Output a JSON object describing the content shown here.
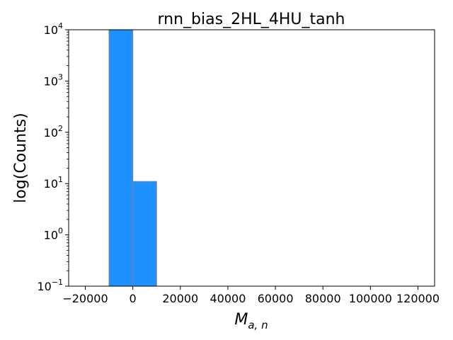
{
  "chart_data": {
    "type": "bar",
    "title": "rnn_bias_2HL_4HU_tanh",
    "xlabel": "M",
    "xlabel_subscript": "a, n",
    "ylabel": "log(Counts)",
    "yscale": "log",
    "xlim": [
      -27000,
      127000
    ],
    "ylim": [
      0.1,
      10000
    ],
    "x_ticks": [
      -20000,
      0,
      20000,
      40000,
      60000,
      80000,
      100000,
      120000
    ],
    "x_tick_labels": [
      "−20000",
      "0",
      "20000",
      "40000",
      "60000",
      "80000",
      "100000",
      "120000"
    ],
    "y_ticks": [
      {
        "base": "10",
        "exp": "−1",
        "value": 0.1
      },
      {
        "base": "10",
        "exp": "0",
        "value": 1
      },
      {
        "base": "10",
        "exp": "1",
        "value": 10
      },
      {
        "base": "10",
        "exp": "2",
        "value": 100
      },
      {
        "base": "10",
        "exp": "3",
        "value": 1000
      },
      {
        "base": "10",
        "exp": "4",
        "value": 10000
      }
    ],
    "bins": [
      {
        "x0": -10000,
        "x1": 0,
        "count": 10000
      },
      {
        "x0": 0,
        "x1": 10000,
        "count": 11
      }
    ],
    "bar_color": "#1e90ff",
    "bar_edge_color": "#808080",
    "grid": false
  }
}
